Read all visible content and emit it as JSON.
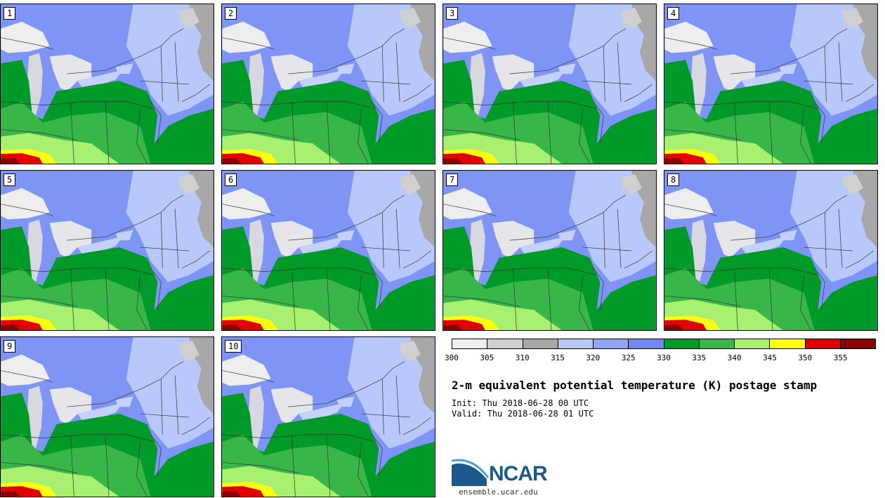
{
  "panels": [
    {
      "label": "1"
    },
    {
      "label": "2"
    },
    {
      "label": "3"
    },
    {
      "label": "4"
    },
    {
      "label": "5"
    },
    {
      "label": "6"
    },
    {
      "label": "7"
    },
    {
      "label": "8"
    },
    {
      "label": "9"
    },
    {
      "label": "10"
    }
  ],
  "colorbar": {
    "colors": [
      "#eeeeee",
      "#d0d0d0",
      "#a8a8a8",
      "#b8c8fa",
      "#8ea5f8",
      "#7088f3",
      "#009a28",
      "#38b648",
      "#a8f070",
      "#ffff10",
      "#e20000",
      "#8a0000"
    ],
    "ticks": [
      "300",
      "305",
      "310",
      "315",
      "320",
      "325",
      "330",
      "335",
      "340",
      "345",
      "350",
      "355"
    ]
  },
  "title": "2-m equivalent potential temperature (K) postage stamp",
  "init": "Init: Thu 2018-06-28 00 UTC",
  "valid": "Valid: Thu 2018-06-28 01 UTC",
  "logo": {
    "text": "NCAR",
    "site": "ensemble.ucar.edu"
  }
}
